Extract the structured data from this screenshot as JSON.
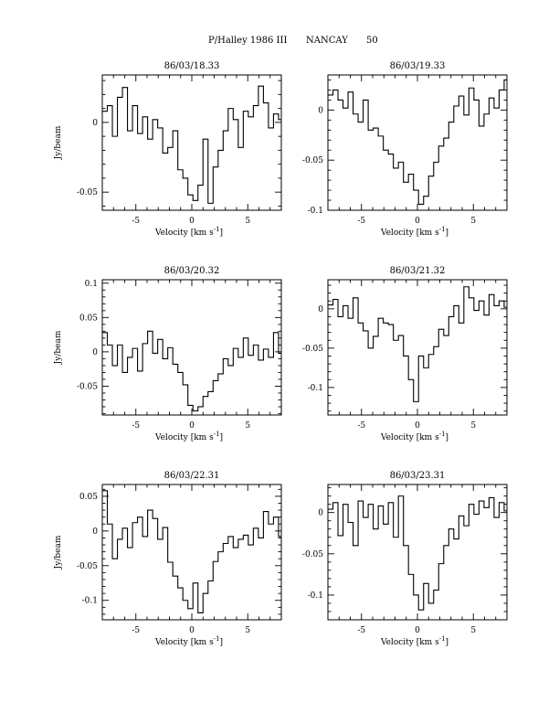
{
  "title": {
    "comet": "P/Halley 1986 III",
    "station": "NANCAY",
    "page_number": "50"
  },
  "chart_data": [
    {
      "type": "line",
      "title": "86/03/18.33",
      "xlabel": "Velocity [km s",
      "xlabel_exp": "-1",
      "xlabel_close": "]",
      "ylabel": "Jy/beam",
      "xlim": [
        -8.0,
        8.0
      ],
      "ylim": [
        -0.063,
        0.034
      ],
      "xticks": [
        -5,
        0,
        5
      ],
      "xtick_labels": [
        "-5",
        "0",
        "5"
      ],
      "yticks": [
        0,
        -0.05
      ],
      "ytick_labels": [
        "0",
        "-0.05"
      ],
      "series": [
        {
          "x": [
            -8.0,
            -7.55,
            -7.1,
            -6.65,
            -6.2,
            -5.75,
            -5.3,
            -4.85,
            -4.4,
            -3.95,
            -3.5,
            -3.05,
            -2.6,
            -2.15,
            -1.7,
            -1.25,
            -0.8,
            -0.35,
            0.1,
            0.55,
            1.0,
            1.45,
            1.9,
            2.35,
            2.8,
            3.25,
            3.7,
            4.15,
            4.6,
            5.05,
            5.5,
            5.95,
            6.4,
            6.85,
            7.3,
            7.75
          ],
          "y": [
            0.008,
            0.012,
            -0.01,
            0.018,
            0.025,
            -0.006,
            0.012,
            -0.008,
            0.004,
            -0.012,
            0.002,
            -0.004,
            -0.022,
            -0.018,
            -0.006,
            -0.034,
            -0.04,
            -0.052,
            -0.056,
            -0.045,
            -0.012,
            -0.058,
            -0.032,
            -0.02,
            -0.006,
            0.01,
            0.002,
            -0.018,
            0.008,
            0.004,
            0.012,
            0.026,
            0.014,
            -0.004,
            0.006,
            0.002
          ]
        }
      ]
    },
    {
      "type": "line",
      "title": "86/03/19.33",
      "xlabel": "Velocity [km s",
      "xlabel_exp": "-1",
      "xlabel_close": "]",
      "ylabel": "",
      "xlim": [
        -8.0,
        8.0
      ],
      "ylim": [
        -0.1,
        0.035
      ],
      "xticks": [
        -5,
        0,
        5
      ],
      "xtick_labels": [
        "-5",
        "0",
        "5"
      ],
      "yticks": [
        0,
        -0.05,
        -0.1
      ],
      "ytick_labels": [
        "0",
        "-0.05",
        "-0.1"
      ],
      "series": [
        {
          "x": [
            -8.0,
            -7.55,
            -7.1,
            -6.65,
            -6.2,
            -5.75,
            -5.3,
            -4.85,
            -4.4,
            -3.95,
            -3.5,
            -3.05,
            -2.6,
            -2.15,
            -1.7,
            -1.25,
            -0.8,
            -0.35,
            0.1,
            0.55,
            1.0,
            1.45,
            1.9,
            2.35,
            2.8,
            3.25,
            3.7,
            4.15,
            4.6,
            5.05,
            5.5,
            5.95,
            6.4,
            6.85,
            7.3,
            7.75
          ],
          "y": [
            0.015,
            0.02,
            0.01,
            0.002,
            0.018,
            -0.004,
            -0.012,
            0.01,
            -0.02,
            -0.018,
            -0.026,
            -0.04,
            -0.044,
            -0.058,
            -0.052,
            -0.072,
            -0.064,
            -0.08,
            -0.094,
            -0.086,
            -0.066,
            -0.052,
            -0.036,
            -0.028,
            -0.012,
            0.004,
            0.014,
            -0.005,
            0.022,
            0.01,
            -0.016,
            -0.004,
            0.012,
            0.002,
            0.02,
            0.03
          ]
        }
      ]
    },
    {
      "type": "line",
      "title": "86/03/20.32",
      "xlabel": "Velocity [km s",
      "xlabel_exp": "-1",
      "xlabel_close": "]",
      "ylabel": "Jy/beam",
      "xlim": [
        -8.0,
        8.0
      ],
      "ylim": [
        -0.092,
        0.105
      ],
      "xticks": [
        -5,
        0,
        5
      ],
      "xtick_labels": [
        "-5",
        "0",
        "5"
      ],
      "yticks": [
        0.1,
        0.05,
        0,
        -0.05
      ],
      "ytick_labels": [
        "0.1",
        "0.05",
        "0",
        "-0.05"
      ],
      "series": [
        {
          "x": [
            -8.0,
            -7.55,
            -7.1,
            -6.65,
            -6.2,
            -5.75,
            -5.3,
            -4.85,
            -4.4,
            -3.95,
            -3.5,
            -3.05,
            -2.6,
            -2.15,
            -1.7,
            -1.25,
            -0.8,
            -0.35,
            0.1,
            0.55,
            1.0,
            1.45,
            1.9,
            2.35,
            2.8,
            3.25,
            3.7,
            4.15,
            4.6,
            5.05,
            5.5,
            5.95,
            6.4,
            6.85,
            7.3,
            7.75
          ],
          "y": [
            0.028,
            0.01,
            -0.02,
            0.01,
            -0.03,
            -0.008,
            0.005,
            -0.028,
            0.012,
            0.03,
            -0.002,
            0.018,
            -0.01,
            0.006,
            -0.018,
            -0.03,
            -0.048,
            -0.078,
            -0.086,
            -0.08,
            -0.065,
            -0.058,
            -0.042,
            -0.032,
            -0.01,
            -0.02,
            0.005,
            -0.008,
            0.02,
            -0.005,
            0.01,
            -0.012,
            0.004,
            -0.008,
            0.028,
            -0.002
          ]
        }
      ]
    },
    {
      "type": "line",
      "title": "86/03/21.32",
      "xlabel": "Velocity [km s",
      "xlabel_exp": "-1",
      "xlabel_close": "]",
      "ylabel": "",
      "xlim": [
        -8.0,
        8.0
      ],
      "ylim": [
        -0.135,
        0.037
      ],
      "xticks": [
        -5,
        0,
        5
      ],
      "xtick_labels": [
        "-5",
        "0",
        "5"
      ],
      "yticks": [
        0,
        -0.05,
        -0.1
      ],
      "ytick_labels": [
        "0",
        "-0.05",
        "-0.1"
      ],
      "series": [
        {
          "x": [
            -8.0,
            -7.55,
            -7.1,
            -6.65,
            -6.2,
            -5.75,
            -5.3,
            -4.85,
            -4.4,
            -3.95,
            -3.5,
            -3.05,
            -2.6,
            -2.15,
            -1.7,
            -1.25,
            -0.8,
            -0.35,
            0.1,
            0.55,
            1.0,
            1.45,
            1.9,
            2.35,
            2.8,
            3.25,
            3.7,
            4.15,
            4.6,
            5.05,
            5.5,
            5.95,
            6.4,
            6.85,
            7.3,
            7.75
          ],
          "y": [
            0.005,
            0.012,
            -0.01,
            0.004,
            -0.012,
            0.014,
            -0.018,
            -0.028,
            -0.05,
            -0.035,
            -0.012,
            -0.018,
            -0.02,
            -0.04,
            -0.034,
            -0.06,
            -0.09,
            -0.118,
            -0.06,
            -0.075,
            -0.058,
            -0.048,
            -0.026,
            -0.034,
            -0.01,
            0.004,
            -0.018,
            0.028,
            0.014,
            -0.002,
            0.01,
            -0.008,
            0.018,
            0.004,
            0.01,
            0.002
          ]
        }
      ]
    },
    {
      "type": "line",
      "title": "86/03/22.31",
      "xlabel": "Velocity [km s",
      "xlabel_exp": "-1",
      "xlabel_close": "]",
      "ylabel": "Jy/beam",
      "xlim": [
        -8.0,
        8.0
      ],
      "ylim": [
        -0.128,
        0.067
      ],
      "xticks": [
        -5,
        0,
        5
      ],
      "xtick_labels": [
        "-5",
        "0",
        "5"
      ],
      "yticks": [
        0.05,
        0,
        -0.05,
        -0.1
      ],
      "ytick_labels": [
        "0.05",
        "0",
        "-0.05",
        "-0.1"
      ],
      "series": [
        {
          "x": [
            -8.0,
            -7.55,
            -7.1,
            -6.65,
            -6.2,
            -5.75,
            -5.3,
            -4.85,
            -4.4,
            -3.95,
            -3.5,
            -3.05,
            -2.6,
            -2.15,
            -1.7,
            -1.25,
            -0.8,
            -0.35,
            0.1,
            0.55,
            1.0,
            1.45,
            1.9,
            2.35,
            2.8,
            3.25,
            3.7,
            4.15,
            4.6,
            5.05,
            5.5,
            5.95,
            6.4,
            6.85,
            7.3,
            7.75
          ],
          "y": [
            0.058,
            0.01,
            -0.04,
            -0.012,
            0.004,
            -0.024,
            0.012,
            0.02,
            -0.008,
            0.03,
            0.018,
            -0.012,
            0.005,
            -0.045,
            -0.065,
            -0.082,
            -0.1,
            -0.112,
            -0.075,
            -0.118,
            -0.09,
            -0.072,
            -0.044,
            -0.03,
            -0.018,
            -0.008,
            -0.024,
            -0.012,
            -0.006,
            -0.02,
            0.004,
            -0.01,
            0.028,
            0.01,
            0.02,
            -0.008
          ]
        }
      ]
    },
    {
      "type": "line",
      "title": "86/03/23.31",
      "xlabel": "Velocity [km s",
      "xlabel_exp": "-1",
      "xlabel_close": "]",
      "ylabel": "",
      "xlim": [
        -8.0,
        8.0
      ],
      "ylim": [
        -0.13,
        0.034
      ],
      "xticks": [
        -5,
        0,
        5
      ],
      "xtick_labels": [
        "-5",
        "0",
        "5"
      ],
      "yticks": [
        0,
        -0.05,
        -0.1
      ],
      "ytick_labels": [
        "0",
        "-0.05",
        "-0.1"
      ],
      "series": [
        {
          "x": [
            -8.0,
            -7.55,
            -7.1,
            -6.65,
            -6.2,
            -5.75,
            -5.3,
            -4.85,
            -4.4,
            -3.95,
            -3.5,
            -3.05,
            -2.6,
            -2.15,
            -1.7,
            -1.25,
            -0.8,
            -0.35,
            0.1,
            0.55,
            1.0,
            1.45,
            1.9,
            2.35,
            2.8,
            3.25,
            3.7,
            4.15,
            4.6,
            5.05,
            5.5,
            5.95,
            6.4,
            6.85,
            7.3,
            7.75
          ],
          "y": [
            0.004,
            0.012,
            -0.028,
            0.01,
            -0.012,
            -0.04,
            0.014,
            -0.006,
            0.01,
            -0.02,
            0.008,
            -0.014,
            0.012,
            -0.03,
            0.02,
            -0.04,
            -0.075,
            -0.1,
            -0.118,
            -0.086,
            -0.11,
            -0.094,
            -0.062,
            -0.04,
            -0.02,
            -0.032,
            -0.004,
            -0.016,
            0.01,
            -0.002,
            0.014,
            0.006,
            0.018,
            -0.006,
            0.012,
            0.002
          ]
        }
      ]
    }
  ]
}
